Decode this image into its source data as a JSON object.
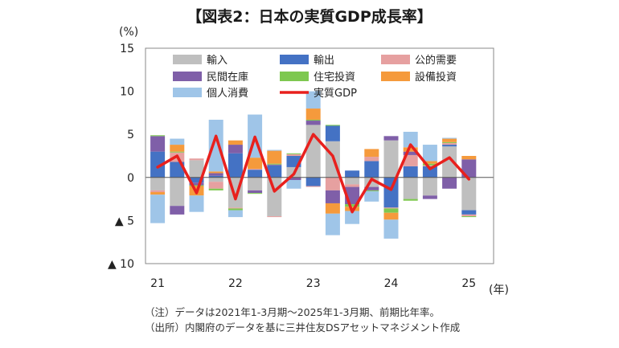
{
  "title": "【図表2：日本の実質GDP成長率】",
  "notes": {
    "note": "（注）データは2021年1-3月期～2025年1-3月期、前期比年率。",
    "source": "（出所）内閣府のデータを基に三井住友DSアセットマネジメント作成"
  },
  "chart_data": {
    "type": "bar",
    "stacked": true,
    "ylabel": "(%)",
    "xlabel": "(年)",
    "ylim": [
      -10,
      15
    ],
    "yticks": [
      {
        "value": 15,
        "label": "15"
      },
      {
        "value": 10,
        "label": "10"
      },
      {
        "value": 5,
        "label": "5"
      },
      {
        "value": 0,
        "label": "0"
      },
      {
        "value": -5,
        "label": "▲ 5"
      },
      {
        "value": -10,
        "label": "▲ 10"
      }
    ],
    "year_labels": [
      {
        "label": "21",
        "index": 0
      },
      {
        "label": "22",
        "index": 4
      },
      {
        "label": "23",
        "index": 8
      },
      {
        "label": "24",
        "index": 12
      },
      {
        "label": "25",
        "index": 16
      }
    ],
    "categories": [
      "2021Q1",
      "2021Q2",
      "2021Q3",
      "2021Q4",
      "2022Q1",
      "2022Q2",
      "2022Q3",
      "2022Q4",
      "2023Q1",
      "2023Q2",
      "2023Q3",
      "2023Q4",
      "2024Q1",
      "2024Q2",
      "2024Q3",
      "2024Q4",
      "2025Q1"
    ],
    "series": [
      {
        "name": "輸入",
        "color": "#bfbfbf",
        "values": [
          -1.5,
          -3.3,
          2.0,
          -0.5,
          -3.5,
          -1.5,
          -4.5,
          1.2,
          6.1,
          4.2,
          -0.8,
          -1.1,
          4.3,
          -2.5,
          -2.1,
          3.6,
          -3.8
        ]
      },
      {
        "name": "輸出",
        "color": "#4472c4",
        "values": [
          3.0,
          1.8,
          -0.6,
          0.2,
          2.8,
          0.9,
          1.4,
          1.3,
          -1.0,
          1.8,
          0.8,
          1.9,
          -3.5,
          1.3,
          1.3,
          0.2,
          -0.5
        ]
      },
      {
        "name": "公的需要",
        "color": "#e6a0a0",
        "values": [
          -0.2,
          1.1,
          0.2,
          -0.8,
          -0.1,
          0.1,
          -0.1,
          0.2,
          -0.1,
          -1.5,
          -0.3,
          0.5,
          -0.1,
          1.3,
          0.1,
          0.2,
          -0.2
        ]
      },
      {
        "name": "民間在庫",
        "color": "#7f5fa8",
        "values": [
          1.8,
          -1.0,
          -0.3,
          0.3,
          1.0,
          -0.3,
          0.1,
          -0.3,
          0.5,
          -1.5,
          -2.0,
          -0.4,
          0.5,
          0.4,
          -0.4,
          -1.3,
          2.1
        ]
      },
      {
        "name": "住宅投資",
        "color": "#7ec850",
        "values": [
          0.1,
          0.1,
          -0.1,
          -0.2,
          -0.2,
          -0.1,
          0.1,
          0.1,
          0.1,
          0.1,
          -0.3,
          -0.1,
          -0.5,
          -0.2,
          0.2,
          0.1,
          -0.1
        ]
      },
      {
        "name": "設備投資",
        "color": "#f59a3c",
        "values": [
          -0.3,
          0.8,
          -1.1,
          0.2,
          0.5,
          1.3,
          1.5,
          0.0,
          1.3,
          -1.2,
          -0.5,
          0.9,
          -0.8,
          0.5,
          0.3,
          0.4,
          0.4
        ]
      },
      {
        "name": "個人消費",
        "color": "#9fc5e8",
        "values": [
          -3.3,
          0.7,
          -1.9,
          6.0,
          -0.8,
          5.0,
          0.1,
          -1.0,
          2.0,
          -2.5,
          -1.5,
          -1.2,
          -2.2,
          1.8,
          1.9,
          0.1,
          0.0
        ]
      }
    ],
    "line": {
      "name": "実質GDP",
      "color": "#e8201d",
      "values": [
        1.2,
        2.5,
        -1.8,
        4.8,
        -2.5,
        4.7,
        -1.6,
        0.4,
        5.0,
        2.5,
        -4.0,
        -0.2,
        -1.4,
        3.8,
        1.0,
        2.3,
        -0.2
      ]
    },
    "legend_order": [
      "輸入",
      "輸出",
      "公的需要",
      "民間在庫",
      "住宅投資",
      "設備投資",
      "個人消費",
      "実質GDP"
    ],
    "legend_placement": "top",
    "grid": false
  }
}
